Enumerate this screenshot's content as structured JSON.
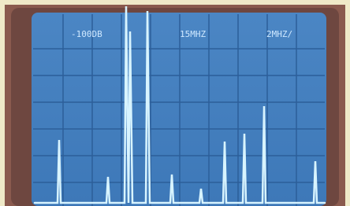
{
  "screen": {
    "readouts": {
      "reference_level": "-100DB",
      "center_frequency": "15MHZ",
      "span": "2MHZ/"
    }
  }
}
